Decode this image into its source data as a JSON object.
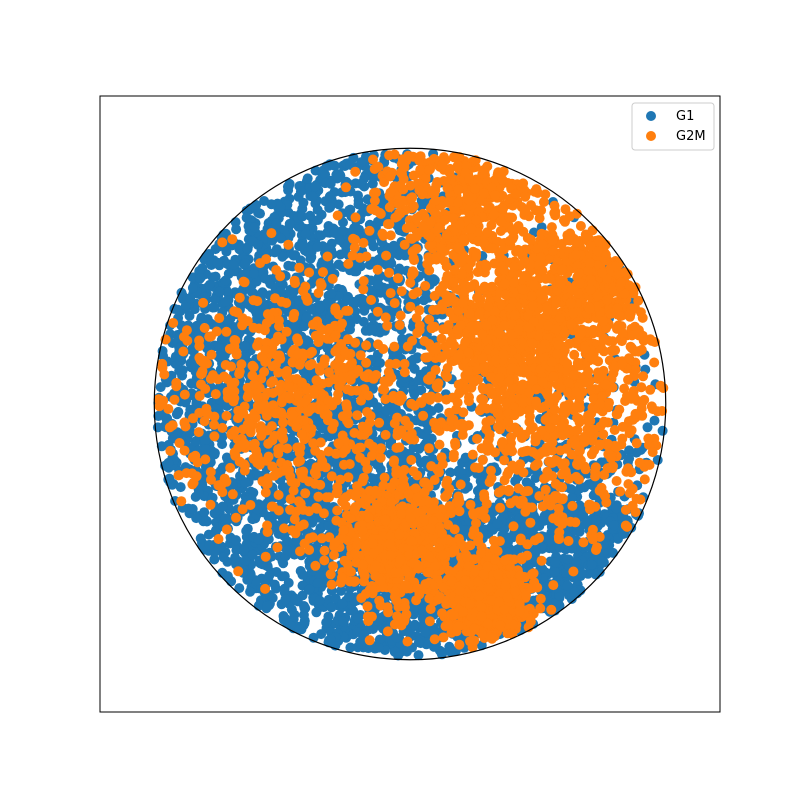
{
  "chart_data": {
    "type": "scatter",
    "title": "",
    "xlabel": "",
    "ylabel": "",
    "xlim": [
      -1.2,
      1.2
    ],
    "ylim": [
      -1.2,
      1.2
    ],
    "grid": false,
    "axes_ticks": false,
    "boundary_circle": {
      "center": [
        0,
        0
      ],
      "radius": 1.0
    },
    "legend_position": "top-right",
    "series": [
      {
        "name": "G1",
        "color": "#1f77b4",
        "approx_point_count": 9000,
        "regions": [
          {
            "center": [
              -0.55,
              0.0
            ],
            "spread": 0.4
          },
          {
            "center": [
              -0.2,
              -0.55
            ],
            "spread": 0.35
          },
          {
            "center": [
              0.15,
              -0.75
            ],
            "spread": 0.2
          },
          {
            "center": [
              -0.5,
              0.55
            ],
            "spread": 0.3
          },
          {
            "center": [
              0.6,
              -0.55
            ],
            "spread": 0.25
          }
        ]
      },
      {
        "name": "G2M",
        "color": "#ff7f0e",
        "approx_point_count": 7000,
        "regions": [
          {
            "center": [
              0.2,
              0.8
            ],
            "spread": 0.18
          },
          {
            "center": [
              0.72,
              0.45
            ],
            "spread": 0.18
          },
          {
            "center": [
              0.55,
              -0.1
            ],
            "spread": 0.25
          },
          {
            "center": [
              0.4,
              0.28
            ],
            "spread": 0.15
          },
          {
            "center": [
              -0.05,
              -0.55
            ],
            "spread": 0.12
          },
          {
            "center": [
              0.3,
              -0.75
            ],
            "spread": 0.08
          },
          {
            "center": [
              -0.45,
              0.0
            ],
            "spread": 0.25
          }
        ]
      }
    ]
  }
}
